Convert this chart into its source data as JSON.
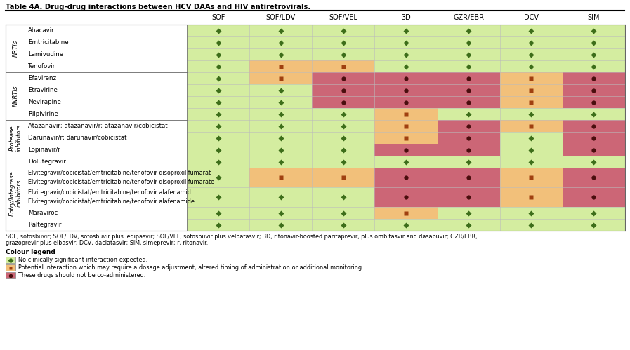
{
  "title": "Table 4A. Drug-drug interactions between HCV DAAs and HIV antiretrovirals.",
  "columns": [
    "SOF",
    "SOF/LDV",
    "SOF/VEL",
    "3D",
    "GZR/EBR",
    "DCV",
    "SIM"
  ],
  "row_groups": [
    {
      "group_label": "NRTIs",
      "rows": [
        {
          "drug": "Abacavir",
          "vals": [
            0,
            0,
            0,
            0,
            0,
            0,
            0
          ]
        },
        {
          "drug": "Emtricitabine",
          "vals": [
            0,
            0,
            0,
            0,
            0,
            0,
            0
          ]
        },
        {
          "drug": "Lamivudine",
          "vals": [
            0,
            0,
            0,
            0,
            0,
            0,
            0
          ]
        },
        {
          "drug": "Tenofovir",
          "vals": [
            0,
            1,
            1,
            0,
            0,
            0,
            0
          ]
        }
      ]
    },
    {
      "group_label": "NNRTIs",
      "rows": [
        {
          "drug": "Efavirenz",
          "vals": [
            0,
            1,
            2,
            2,
            2,
            1,
            2
          ]
        },
        {
          "drug": "Etravirine",
          "vals": [
            0,
            0,
            2,
            2,
            2,
            1,
            2
          ]
        },
        {
          "drug": "Nevirapine",
          "vals": [
            0,
            0,
            2,
            2,
            2,
            1,
            2
          ]
        },
        {
          "drug": "Rilpivirine",
          "vals": [
            0,
            0,
            0,
            1,
            0,
            0,
            0
          ]
        }
      ]
    },
    {
      "group_label": "Protease\ninhibitors",
      "rows": [
        {
          "drug": "Atazanavir; atazanavir/r; atazanavir/cobicistat",
          "vals": [
            0,
            0,
            0,
            1,
            2,
            1,
            2
          ],
          "multiline": false
        },
        {
          "drug": "Darunavir/r; darunavir/cobicistat",
          "vals": [
            0,
            0,
            0,
            1,
            2,
            0,
            2
          ],
          "multiline": false
        },
        {
          "drug": "Lopinavir/r",
          "vals": [
            0,
            0,
            0,
            2,
            2,
            0,
            2
          ],
          "multiline": false
        }
      ]
    },
    {
      "group_label": "Entry/Integrase\ninhibitors",
      "rows": [
        {
          "drug": "Dolutegravir",
          "vals": [
            0,
            0,
            0,
            0,
            0,
            0,
            0
          ],
          "multiline": false
        },
        {
          "drug": "Elvitegravir/cobicistat/emtricitabine/tenofovir disoproxil fumarate",
          "vals": [
            0,
            1,
            1,
            2,
            2,
            1,
            2
          ],
          "multiline": true
        },
        {
          "drug": "Elvitegravir/cobicistat/emtricitabine/tenofovir alafenamide",
          "vals": [
            0,
            0,
            0,
            2,
            2,
            1,
            2
          ],
          "multiline": true
        },
        {
          "drug": "Maraviroc",
          "vals": [
            0,
            0,
            0,
            1,
            0,
            0,
            0
          ],
          "multiline": false
        },
        {
          "drug": "Raltegravir",
          "vals": [
            0,
            0,
            0,
            0,
            0,
            0,
            0
          ],
          "multiline": false
        }
      ]
    }
  ],
  "colors": {
    "green_bg": "#d4eda0",
    "orange_bg": "#f2c07a",
    "red_bg": "#cc6676",
    "white_bg": "#ffffff"
  },
  "marker_colors": {
    "0": "#3d6e1a",
    "1": "#a04010",
    "2": "#4a0e0e"
  },
  "footnote1": "SOF, sofosbuvir; SOF/LDV, sofosbuvir plus ledipasvir; SOF/VEL, sofosbuvir plus velpatasvir; 3D, ritonavir-boosted paritaprevir, plus ombitasvir and dasabuvir; GZR/EBR,",
  "footnote2": "grazoprevir plus elbasvir; DCV, daclatasvir; SIM, simeprevir; r, ritonavir.",
  "legend_title": "Colour legend",
  "legend_items": [
    {
      "color_bg": "#d4eda0",
      "marker": 0,
      "text": "No clinically significant interaction expected."
    },
    {
      "color_bg": "#f2c07a",
      "marker": 1,
      "text": "Potential interaction which may require a dosage adjustment, altered timing of administration or additional monitoring."
    },
    {
      "color_bg": "#cc6676",
      "marker": 2,
      "text": "These drugs should not be co-administered."
    }
  ]
}
